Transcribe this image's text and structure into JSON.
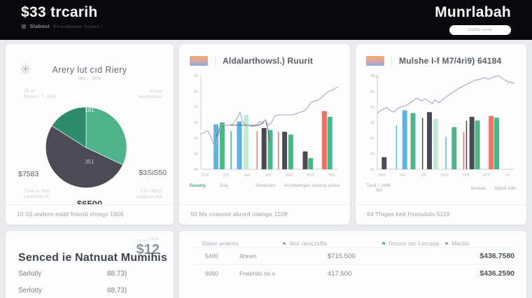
{
  "header": {
    "title": "$33 trcarih",
    "brand_bold": "Slabout",
    "brand_rest": "Einerobuene Scnere I",
    "right_title": "Munrlabah",
    "pill_label": "Josd5s svrtsr"
  },
  "pie_card": {
    "title": "Arery lut cıd Riery",
    "subtitle": "081 / . 30%",
    "left_note_1": "7E ıd",
    "left_note_2": "Bostıe / 7 .ro06",
    "right_note_1": "U1os1",
    "right_note_2": "wısrtorocos",
    "label_left": "$7583",
    "label_right": "$3SiS50",
    "inner_top": "181",
    "inner_mid": "351",
    "bottom_label": "$6500",
    "mini_left_1": "7Coe is 1M0",
    "mini_left_2": "saresstsn.t5",
    "mini_right_1": "F10 i06/51",
    "mini_right_2": "ssadstsn.nt3",
    "footer": "10 03 andere esdd fniurid shregs 1906"
  },
  "chart_card_1": {
    "title": "Aldalarthowsl.) Ruurit",
    "legend_1": "Dusery",
    "legend_2": "Day",
    "legend_right_1": "Smatsam",
    "legend_right_2": "Acmbamges saeling aclea",
    "footer": "50 Ms cnaonot aluord olainge 1108"
  },
  "chart_card_2": {
    "title": "Mulshe I-f M7/4ri9) 64184",
    "corner_label": "Cor",
    "note_1": "Tavd /, 9M6",
    "note_2": "M3",
    "note_3": "Sooeet",
    "note_4": "Stprdi ode",
    "footer": "64 Thiges ked fnonsdulo 5119"
  },
  "summary_card": {
    "arc_note": "ssss,Pssd",
    "amount": "$12",
    "title": "Senced ie Natnuat Mumihis",
    "rows": [
      {
        "label": "Sarlotly",
        "value": "88.73)"
      },
      {
        "label": "Serlotty",
        "value": "68.73)"
      }
    ]
  },
  "table": {
    "headers": [
      "Slater ariamls",
      "Wul oenLtsifls",
      "Roomt ssr Lorcasp",
      "Maclio"
    ],
    "rows": [
      [
        "5400",
        "Ahnen",
        "$715.500",
        "$436.7580"
      ],
      [
        "9090",
        "Fnelrhilo no s",
        "417.500",
        "$436.2590"
      ]
    ]
  },
  "colors": {
    "header_bg": "#0a0a0e",
    "page_bg": "#e9ebef",
    "accent_green": "#4fb389",
    "palette": {
      "blue": "#5fb2e5",
      "green": "#4db58a",
      "pale": "#c3ead6",
      "dark": "#4a4a54",
      "red": "#ec7467",
      "line": "#a9b0c9",
      "line2": "#63636d",
      "axis": "#c9cdd4",
      "tick": "#b7bcc3"
    }
  },
  "chart_data": [
    {
      "type": "pie",
      "title": "Arery lut cıd Riery",
      "slices": [
        {
          "label": "$3SiS50",
          "value": 32,
          "color": "#4fb389"
        },
        {
          "label": "$6500",
          "value": 52,
          "color": "#4b4b55"
        },
        {
          "label": "$7583",
          "value": 16,
          "color": "#2e8a6c"
        }
      ],
      "inner_labels": [
        "181",
        "351"
      ],
      "legend_position": "around"
    },
    {
      "type": "combo-bar-line",
      "title": "Aldalarthowsl.) Ruurit",
      "y_ticks_top_down": [
        "83",
        "80",
        "60",
        "50",
        "40",
        "40",
        "40"
      ],
      "x_ticks": [
        "0536",
        "915",
        "8e5",
        "959",
        "0000",
        "3590",
        "7500"
      ],
      "ylim": [
        0,
        100
      ],
      "grid": false,
      "bars": [
        {
          "x": 11,
          "v": 48,
          "c": "blue"
        },
        {
          "x": 15.5,
          "v": 50,
          "c": "green"
        },
        {
          "x": 22,
          "v": 41,
          "c": "green",
          "w": 1.5
        },
        {
          "x": 28,
          "v": 51,
          "c": "blue"
        },
        {
          "x": 33,
          "v": 58,
          "c": "pale"
        },
        {
          "x": 41,
          "v": 41,
          "c": "red",
          "w": 1.5
        },
        {
          "x": 46,
          "v": 44,
          "c": "dark"
        },
        {
          "x": 50.5,
          "v": 42,
          "c": "green"
        },
        {
          "x": 56.5,
          "v": 40,
          "c": "red",
          "w": 1.5
        },
        {
          "x": 61,
          "v": 40,
          "c": "dark"
        },
        {
          "x": 65.5,
          "v": 37,
          "c": "green"
        },
        {
          "x": 76,
          "v": 19,
          "c": "dark"
        },
        {
          "x": 80,
          "v": 12,
          "c": "green"
        },
        {
          "x": 90,
          "v": 62,
          "c": "red"
        },
        {
          "x": 94,
          "v": 56,
          "c": "green"
        }
      ],
      "line": [
        [
          0,
          37
        ],
        [
          3,
          40
        ],
        [
          5,
          41
        ],
        [
          7,
          36
        ],
        [
          9,
          28
        ],
        [
          11,
          25
        ],
        [
          13,
          38
        ],
        [
          15,
          47
        ],
        [
          18,
          47
        ],
        [
          21,
          47
        ],
        [
          24,
          49
        ],
        [
          27,
          56
        ],
        [
          28.5,
          61
        ],
        [
          30,
          52
        ],
        [
          32,
          48
        ],
        [
          35,
          47
        ],
        [
          38,
          47
        ],
        [
          41,
          48
        ],
        [
          43,
          51
        ],
        [
          45,
          50
        ],
        [
          47,
          53
        ],
        [
          49,
          47
        ],
        [
          51,
          49
        ],
        [
          54,
          57
        ],
        [
          57,
          58
        ],
        [
          60,
          58
        ],
        [
          63,
          58
        ],
        [
          66,
          58
        ],
        [
          69,
          59
        ],
        [
          72,
          61
        ],
        [
          75,
          62
        ],
        [
          78,
          66
        ],
        [
          80,
          71
        ],
        [
          83,
          73
        ],
        [
          86,
          74
        ],
        [
          89,
          78
        ],
        [
          92,
          82
        ],
        [
          95,
          84
        ],
        [
          100,
          88
        ]
      ],
      "line2": [
        [
          11,
          34
        ],
        [
          14,
          45
        ],
        [
          18,
          47
        ],
        [
          22,
          47
        ],
        [
          26,
          47
        ],
        [
          30,
          47
        ],
        [
          34,
          47
        ],
        [
          38,
          46
        ],
        [
          42,
          47
        ],
        [
          45,
          49
        ],
        [
          47,
          53
        ],
        [
          49,
          42
        ],
        [
          50,
          30
        ]
      ]
    },
    {
      "type": "combo-bar-line",
      "title": "Mulshe I-f M7/4ri9) 64184",
      "y_ticks_top_down": [
        "06",
        "34",
        "34",
        "33",
        "60",
        "40",
        "45"
      ],
      "x_ticks": [
        "1800",
        "900",
        "300",
        "0000",
        "7500",
        "M79",
        "40"
      ],
      "ylim": [
        0,
        100
      ],
      "grid": false,
      "bars": [
        {
          "x": 5,
          "v": 13,
          "c": "dark"
        },
        {
          "x": 14,
          "v": 47,
          "c": "blue",
          "w": 1.5
        },
        {
          "x": 20,
          "v": 63,
          "c": "blue"
        },
        {
          "x": 26,
          "v": 60,
          "c": "green"
        },
        {
          "x": 33,
          "v": 55,
          "c": "dark",
          "w": 1.5
        },
        {
          "x": 38,
          "v": 61,
          "c": "dark"
        },
        {
          "x": 42.5,
          "v": 54,
          "c": "pale"
        },
        {
          "x": 50,
          "v": 35,
          "c": "blue",
          "w": 1.5
        },
        {
          "x": 56,
          "v": 45,
          "c": "green"
        },
        {
          "x": 63,
          "v": 40,
          "c": "red",
          "w": 1.5
        },
        {
          "x": 65,
          "v": 52,
          "c": "dark",
          "w": 1.5
        },
        {
          "x": 69,
          "v": 56,
          "c": "dark"
        },
        {
          "x": 73,
          "v": 52,
          "c": "green"
        },
        {
          "x": 83,
          "v": 57,
          "c": "red"
        },
        {
          "x": 87,
          "v": 55,
          "c": "green"
        }
      ],
      "line": [
        [
          0,
          60
        ],
        [
          4,
          64
        ],
        [
          7,
          66
        ],
        [
          9,
          63
        ],
        [
          12,
          61
        ],
        [
          15,
          65
        ],
        [
          18,
          67
        ],
        [
          21,
          68
        ],
        [
          24,
          71
        ],
        [
          27,
          74
        ],
        [
          29,
          76
        ],
        [
          32,
          73
        ],
        [
          35,
          75
        ],
        [
          38,
          72
        ],
        [
          40,
          70
        ],
        [
          42,
          74
        ],
        [
          45,
          71
        ],
        [
          48,
          75
        ],
        [
          51,
          78
        ],
        [
          55,
          82
        ],
        [
          59,
          86
        ],
        [
          63,
          89
        ],
        [
          67,
          92
        ],
        [
          71,
          95
        ],
        [
          75,
          96
        ],
        [
          78,
          98
        ],
        [
          81,
          96
        ],
        [
          84,
          98
        ],
        [
          88,
          100
        ],
        [
          92,
          96
        ],
        [
          96,
          93
        ],
        [
          100,
          92
        ]
      ]
    }
  ]
}
